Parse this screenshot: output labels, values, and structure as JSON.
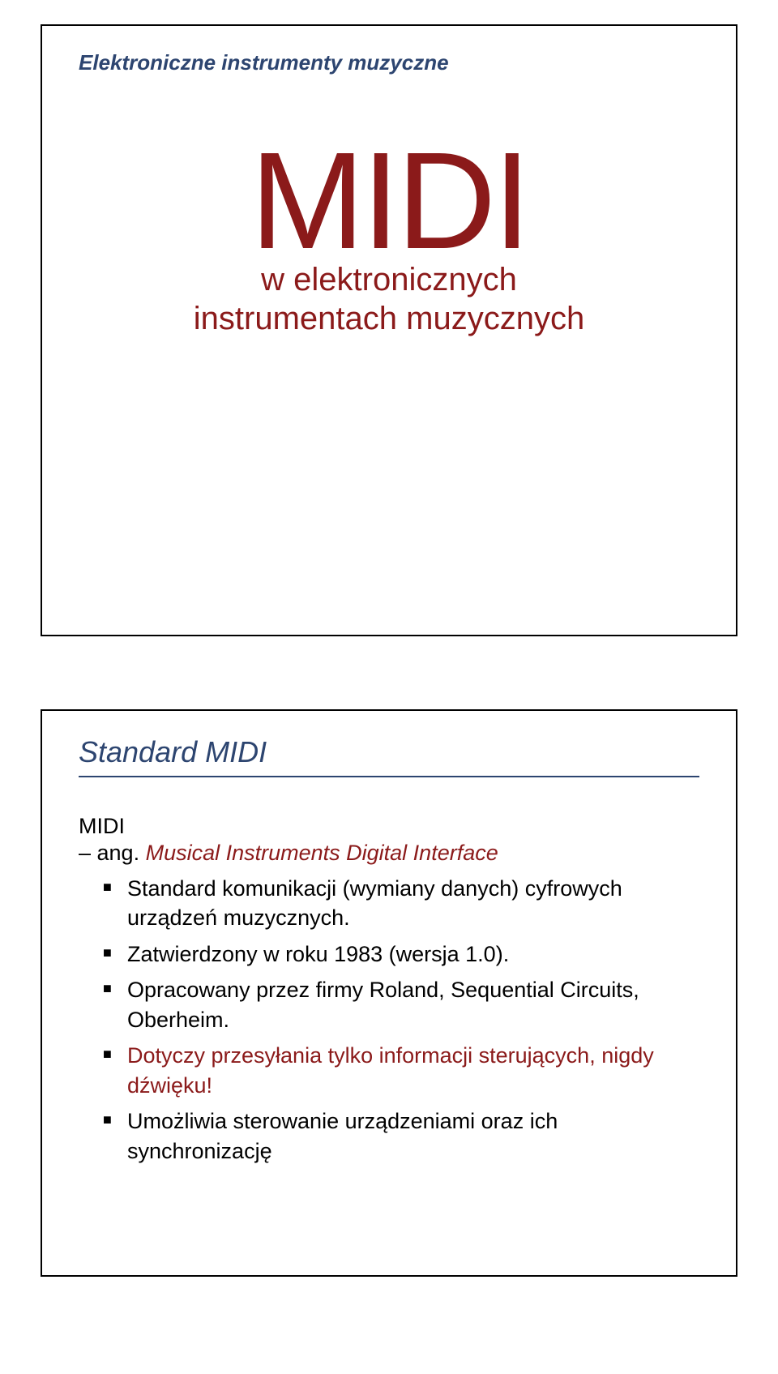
{
  "slide1": {
    "course_header": "Elektroniczne instrumenty muzyczne",
    "main_title": "MIDI",
    "subtitle_line1": "w elektronicznych",
    "subtitle_line2": "instrumentach muzycznych"
  },
  "slide2": {
    "title": "Standard MIDI",
    "term": "MIDI",
    "definition_prefix": "– ang. ",
    "definition_italic": "Musical Instruments Digital Interface",
    "bullets": [
      "Standard komunikacji (wymiany danych) cyfrowych urządzeń muzycznych.",
      "Zatwierdzony w roku 1983 (wersja 1.0).",
      "Opracowany przez firmy Roland, Sequential Circuits, Oberheim.",
      "",
      "Umożliwia sterowanie urządzeniami oraz ich synchronizację"
    ],
    "bullet4_highlight": "Dotyczy przesyłania tylko informacji sterujących, nigdy dźwięku!"
  },
  "styling": {
    "background_color": "#ffffff",
    "border_color": "#000000",
    "header_color": "#2d4570",
    "accent_color": "#8b1a1a",
    "text_color": "#000000",
    "main_title_fontsize": 170,
    "subtitle_fontsize": 40,
    "slide_title_fontsize": 36,
    "body_fontsize": 27,
    "header_fontsize": 26
  }
}
